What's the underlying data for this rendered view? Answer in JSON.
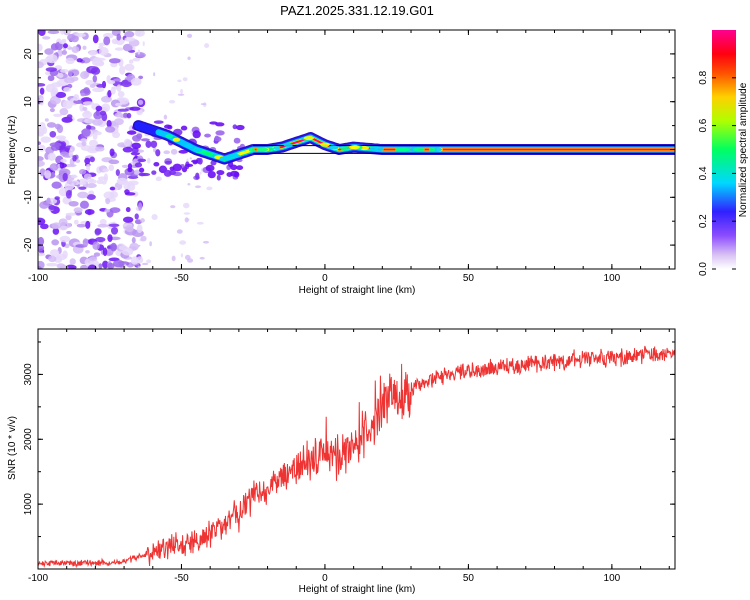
{
  "figure_title": "PAZ1.2025.331.12.19.G01",
  "chart_data": [
    {
      "type": "heatmap",
      "title": "PAZ1.2025.331.12.19.G01",
      "xlabel": "Height of straight line (km)",
      "ylabel": "Frequency (Hz)",
      "xlim": [
        -100,
        122
      ],
      "ylim": [
        -25,
        25
      ],
      "xticks": [
        "-100",
        "-50",
        "0",
        "50",
        "100"
      ],
      "yticks": [
        "20",
        "10",
        "0",
        "-10",
        "-20"
      ],
      "colorbar": {
        "label": "Normalized spectral amplitude",
        "range": [
          0,
          1
        ],
        "ticks": [
          "0.0",
          "0.2",
          "0.4",
          "0.6",
          "0.8"
        ],
        "colors": [
          "#ffffff",
          "#c8a8f0",
          "#7c3cff",
          "#2020ff",
          "#00ffff",
          "#00ff40",
          "#ffff00",
          "#ff8000",
          "#ff0000",
          "#ff00a0"
        ]
      },
      "ridge": {
        "description_points_x": [
          -65,
          -60,
          -55,
          -50,
          -45,
          -40,
          -35,
          -30,
          -25,
          -20,
          -15,
          -10,
          -5,
          0,
          5,
          10,
          20,
          40,
          60,
          80,
          100,
          122
        ],
        "frequency_hz": [
          5,
          4,
          3,
          1.5,
          0,
          -1,
          -2,
          -1,
          0,
          0,
          0.5,
          1.5,
          2.5,
          1,
          0,
          0.5,
          0,
          0,
          0,
          0,
          0,
          0
        ]
      }
    },
    {
      "type": "line",
      "xlabel": "Height of straight line (km)",
      "ylabel": "SNR (10 * v/v)",
      "xlim": [
        -100,
        122
      ],
      "ylim": [
        0,
        3700
      ],
      "xticks": [
        "-100",
        "-50",
        "0",
        "50",
        "100"
      ],
      "yticks": [
        "3000",
        "2000",
        "1000"
      ],
      "series": [
        {
          "name": "SNR",
          "color": "#ee3333",
          "x": [
            -100,
            -90,
            -80,
            -70,
            -65,
            -60,
            -55,
            -50,
            -45,
            -40,
            -35,
            -30,
            -25,
            -20,
            -15,
            -10,
            -5,
            0,
            5,
            10,
            15,
            20,
            25,
            30,
            40,
            50,
            60,
            70,
            80,
            90,
            100,
            110,
            122
          ],
          "y": [
            80,
            90,
            90,
            110,
            180,
            250,
            330,
            380,
            420,
            550,
            700,
            900,
            1150,
            1250,
            1450,
            1550,
            1700,
            1800,
            1750,
            1950,
            2150,
            2450,
            2700,
            2800,
            2950,
            3050,
            3100,
            3150,
            3200,
            3250,
            3250,
            3300,
            3300
          ]
        }
      ]
    }
  ]
}
